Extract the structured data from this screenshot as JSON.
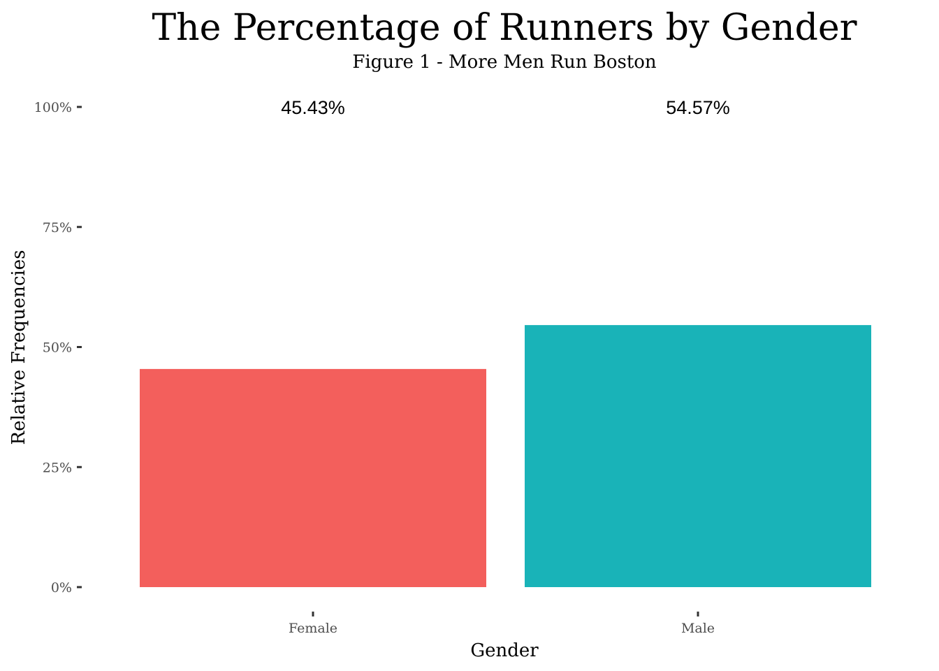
{
  "chart_data": {
    "type": "bar",
    "title": "The Percentage of Runners by Gender",
    "subtitle": "Figure 1 - More Men Run Boston",
    "xlabel": "Gender",
    "ylabel": "Relative Frequencies",
    "categories": [
      "Female",
      "Male"
    ],
    "values": [
      45.43,
      54.57
    ],
    "data_labels": [
      "45.43%",
      "54.57%"
    ],
    "bar_colors": [
      "#F35F5C",
      "#19B3B8"
    ],
    "ylim": [
      0,
      100
    ],
    "yticks": [
      0,
      25,
      50,
      75,
      100
    ],
    "ytick_labels": [
      "0%",
      "25%",
      "50%",
      "75%",
      "100%"
    ],
    "grid": false,
    "legend": "none"
  }
}
